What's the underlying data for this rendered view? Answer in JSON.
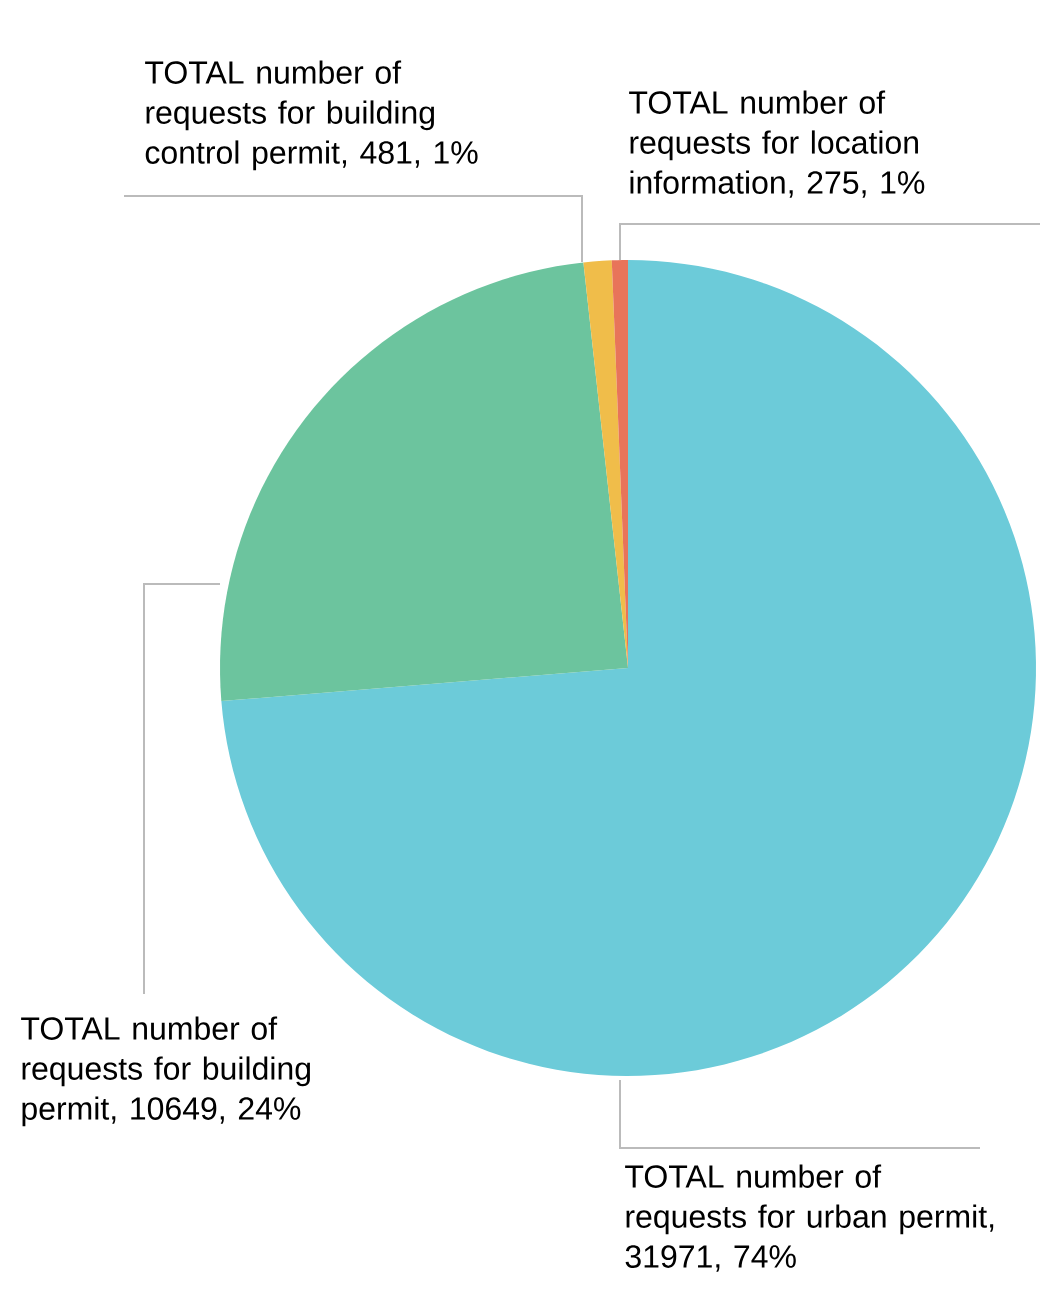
{
  "chart_data": {
    "type": "pie",
    "categories": [
      "TOTAL number of requests for urban permit, 31971, 74%",
      "TOTAL number of requests for building permit, 10649, 24%",
      "TOTAL number of requests for building control permit, 481, 1%",
      "TOTAL number of requests for location information, 275, 1%"
    ],
    "values": [
      31971,
      10649,
      481,
      275
    ],
    "colors": [
      "#6ccbd9",
      "#6cc49e",
      "#f0bd4a",
      "#e8745a"
    ]
  }
}
